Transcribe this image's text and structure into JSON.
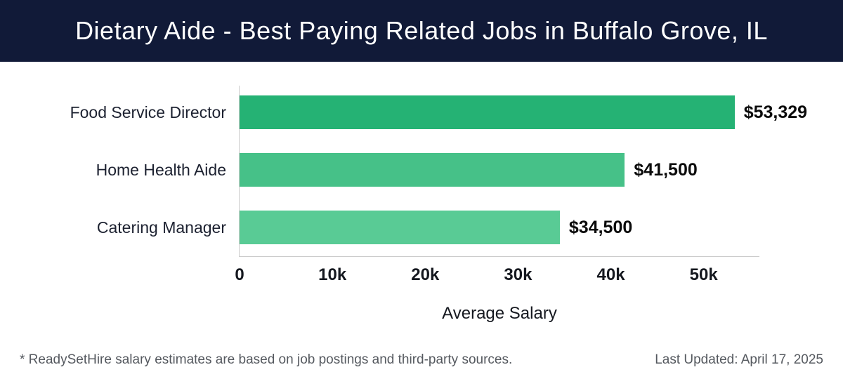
{
  "header": {
    "title": "Dietary Aide - Best Paying Related Jobs in Buffalo Grove, IL"
  },
  "chart_data": {
    "type": "bar",
    "orientation": "horizontal",
    "title": "Dietary Aide - Best Paying Related Jobs in Buffalo Grove, IL",
    "categories": [
      "Food Service Director",
      "Home Health Aide",
      "Catering Manager"
    ],
    "values": [
      53329,
      41500,
      34500
    ],
    "value_labels": [
      "$53,329",
      "$41,500",
      "$34,500"
    ],
    "bar_colors": [
      "#25b274",
      "#46c188",
      "#59cb95"
    ],
    "xlabel": "Average Salary",
    "ylabel": "",
    "xlim": [
      0,
      56000
    ],
    "x_ticks": [
      0,
      10000,
      20000,
      30000,
      40000,
      50000
    ],
    "x_tick_labels": [
      "0",
      "10k",
      "20k",
      "30k",
      "40k",
      "50k"
    ],
    "grid": false,
    "legend": "none"
  },
  "colors": {
    "header_bg": "#111a38",
    "axis_line": "#cccccc",
    "title_text": "#ffffff",
    "footer_text": "#55595f"
  },
  "footer": {
    "disclaimer": "* ReadySetHire salary estimates are based on job postings and third-party sources.",
    "last_updated": "Last Updated: April 17, 2025"
  }
}
